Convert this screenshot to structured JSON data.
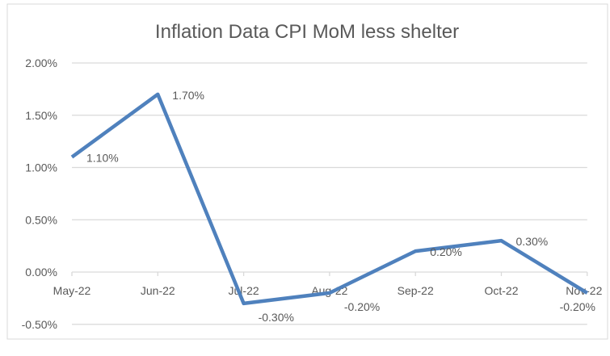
{
  "chart_data": {
    "type": "line",
    "title": "Inflation Data CPI MoM less shelter",
    "categories": [
      "May-22",
      "Jun-22",
      "Jul-22",
      "Aug-22",
      "Sep-22",
      "Oct-22",
      "Nov-22"
    ],
    "series": [
      {
        "values": [
          1.1,
          1.7,
          -0.3,
          -0.2,
          0.2,
          0.3,
          -0.2
        ],
        "color": "#4f81bd"
      }
    ],
    "data_labels": [
      "1.10%",
      "1.70%",
      "-0.30%",
      "-0.20%",
      "0.20%",
      "0.30%",
      "-0.20%"
    ],
    "yticks": [
      -0.5,
      0,
      0.5,
      1.0,
      1.5,
      2.0
    ],
    "ytick_labels": [
      "-0.50%",
      "0.00%",
      "0.50%",
      "1.00%",
      "1.50%",
      "2.00%"
    ],
    "ylim": [
      -0.5,
      2.0
    ],
    "grid": true,
    "xlabel": "",
    "ylabel": ""
  }
}
